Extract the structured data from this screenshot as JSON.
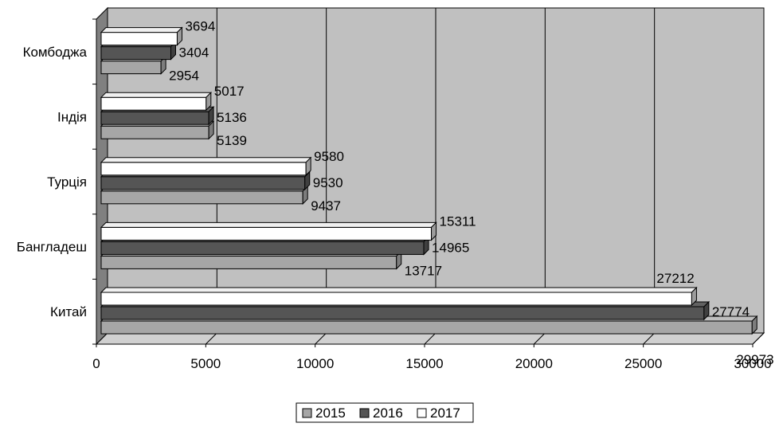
{
  "chart_data": {
    "type": "bar",
    "orientation": "horizontal",
    "three_d": true,
    "categories": [
      "Китай",
      "Бангладеш",
      "Турція",
      "Індія",
      "Комбоджа"
    ],
    "series": [
      {
        "name": "2015",
        "color": "#a6a6a6",
        "values": [
          29973,
          13717,
          9437,
          5139,
          2954
        ]
      },
      {
        "name": "2016",
        "color": "#555555",
        "values": [
          27774,
          14965,
          9530,
          5136,
          3404
        ]
      },
      {
        "name": "2017",
        "color": "#ffffff",
        "values": [
          27212,
          15311,
          9580,
          5017,
          3694
        ]
      }
    ],
    "xlim": [
      0,
      30000
    ],
    "x_ticks": [
      "0",
      "5000",
      "10000",
      "15000",
      "20000",
      "25000",
      "30000"
    ],
    "grid": true,
    "legend_position": "bottom",
    "colors": {
      "wall": "#c0c0c0",
      "side_wall": "#808080",
      "floor": "#d0d0d0",
      "grid": "#000000"
    }
  }
}
